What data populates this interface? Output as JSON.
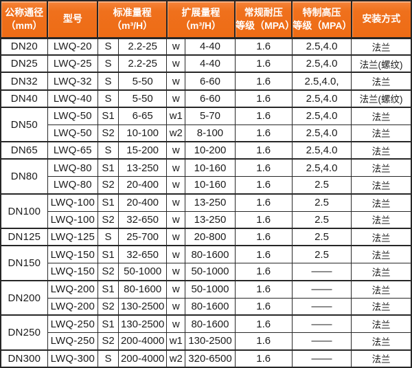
{
  "chart_data": {
    "type": "table",
    "headers": {
      "diameter": "公称通径\n（mm）",
      "model": "型号",
      "standard_range": "标准量程\n（m³/H）",
      "extended_range": "扩展量程\n（m³/H）",
      "regular_pressure": "常规耐压\n等级（MPA）",
      "special_pressure": "特制高压\n等级（MPA）",
      "installation": "安装方式"
    },
    "rows": [
      {
        "dn": "DN20",
        "rowspan": 1,
        "model": "LWQ-20",
        "s_label": "S",
        "standard": "2.2-25",
        "w_label": "w",
        "extended": "4-40",
        "regular_mpa": "1.6",
        "special_mpa": "2.5,4.0",
        "install": "法兰"
      },
      {
        "dn": "DN25",
        "rowspan": 1,
        "model": "LWQ-25",
        "s_label": "S",
        "standard": "2.2-25",
        "w_label": "w",
        "extended": "4-40",
        "regular_mpa": "1.6",
        "special_mpa": "2.5,4.0",
        "install": "法兰(螺纹)"
      },
      {
        "dn": "DN32",
        "rowspan": 1,
        "model": "LWQ-32",
        "s_label": "S",
        "standard": "5-50",
        "w_label": "w",
        "extended": "6-60",
        "regular_mpa": "1.6",
        "special_mpa": "2.5,4.0,",
        "install": "法兰"
      },
      {
        "dn": "DN40",
        "rowspan": 1,
        "model": "LWQ-40",
        "s_label": "S",
        "standard": "5-50",
        "w_label": "w",
        "extended": "6-60",
        "regular_mpa": "1.6",
        "special_mpa": "2.5,4.0",
        "install": "法兰(螺纹)"
      },
      {
        "dn": "DN50",
        "rowspan": 2,
        "model": "LWQ-50",
        "s_label": "S1",
        "standard": "6-65",
        "w_label": "w1",
        "extended": "5-70",
        "regular_mpa": "1.6",
        "special_mpa": "2.5,4.0",
        "install": "法兰"
      },
      {
        "dn": "",
        "rowspan": 0,
        "model": "LWQ-50",
        "s_label": "S2",
        "standard": "10-100",
        "w_label": "w2",
        "extended": "8-100",
        "regular_mpa": "1.6",
        "special_mpa": "2.5,4.0",
        "install": "法兰"
      },
      {
        "dn": "DN65",
        "rowspan": 1,
        "model": "LWQ-65",
        "s_label": "S",
        "standard": "15-200",
        "w_label": "w",
        "extended": "10-200",
        "regular_mpa": "1.6",
        "special_mpa": "2.5,4.0",
        "install": "法兰"
      },
      {
        "dn": "DN80",
        "rowspan": 2,
        "model": "LWQ-80",
        "s_label": "S1",
        "standard": "13-250",
        "w_label": "w",
        "extended": "10-160",
        "regular_mpa": "1.6",
        "special_mpa": "2.5,4.0",
        "install": "法兰"
      },
      {
        "dn": "",
        "rowspan": 0,
        "model": "LWQ-80",
        "s_label": "S2",
        "standard": "20-400",
        "w_label": "w",
        "extended": "10-160",
        "regular_mpa": "1.6",
        "special_mpa": "2.5",
        "install": "法兰"
      },
      {
        "dn": "DN100",
        "rowspan": 2,
        "model": "LWQ-100",
        "s_label": "S1",
        "standard": "20-400",
        "w_label": "w",
        "extended": "13-250",
        "regular_mpa": "1.6",
        "special_mpa": "2.5",
        "install": "法兰"
      },
      {
        "dn": "",
        "rowspan": 0,
        "model": "LWQ-100",
        "s_label": "S2",
        "standard": "32-650",
        "w_label": "w",
        "extended": "13-250",
        "regular_mpa": "1.6",
        "special_mpa": "2.5",
        "install": "法兰"
      },
      {
        "dn": "DN125",
        "rowspan": 1,
        "model": "LWQ-125",
        "s_label": "S",
        "standard": "25-700",
        "w_label": "w",
        "extended": "20-800",
        "regular_mpa": "1.6",
        "special_mpa": "2.5",
        "install": "法兰"
      },
      {
        "dn": "DN150",
        "rowspan": 2,
        "model": "LWQ-150",
        "s_label": "S1",
        "standard": "32-650",
        "w_label": "w",
        "extended": "80-1600",
        "regular_mpa": "1.6",
        "special_mpa": "2.5",
        "install": "法兰"
      },
      {
        "dn": "",
        "rowspan": 0,
        "model": "LWQ-150",
        "s_label": "S2",
        "standard": "50-1000",
        "w_label": "w",
        "extended": "50-1000",
        "regular_mpa": "1.6",
        "special_mpa": "——",
        "install": "法兰"
      },
      {
        "dn": "DN200",
        "rowspan": 2,
        "model": "LWQ-200",
        "s_label": "S1",
        "standard": "80-1600",
        "w_label": "w",
        "extended": "50-1000",
        "regular_mpa": "1.6",
        "special_mpa": "——",
        "install": "法兰"
      },
      {
        "dn": "",
        "rowspan": 0,
        "model": "LWQ-200",
        "s_label": "S2",
        "standard": "130-2500",
        "w_label": "w",
        "extended": "80-1600",
        "regular_mpa": "1.6",
        "special_mpa": "——",
        "install": "法兰"
      },
      {
        "dn": "DN250",
        "rowspan": 2,
        "model": "LWQ-250",
        "s_label": "S1",
        "standard": "130-2500",
        "w_label": "w",
        "extended": "80-1600",
        "regular_mpa": "1.6",
        "special_mpa": "——",
        "install": "法兰"
      },
      {
        "dn": "",
        "rowspan": 0,
        "model": "LWQ-250",
        "s_label": "S2",
        "standard": "200-4000",
        "w_label": "w1",
        "extended": "130-2500",
        "regular_mpa": "1.6",
        "special_mpa": "——",
        "install": "法兰"
      },
      {
        "dn": "DN300",
        "rowspan": 1,
        "model": "LWQ-300",
        "s_label": "S",
        "standard": "200-4000",
        "w_label": "w2",
        "extended": "320-6500",
        "regular_mpa": "1.6",
        "special_mpa": "——",
        "install": "法兰"
      }
    ]
  },
  "colors": {
    "header_bg": "#EE6C15",
    "header_bg_highlight": "#F5843A",
    "header_text": "#FFFFFF",
    "border": "#262626",
    "cell_text": "#1B1B1B",
    "row_bg": "#FFFFFF"
  }
}
